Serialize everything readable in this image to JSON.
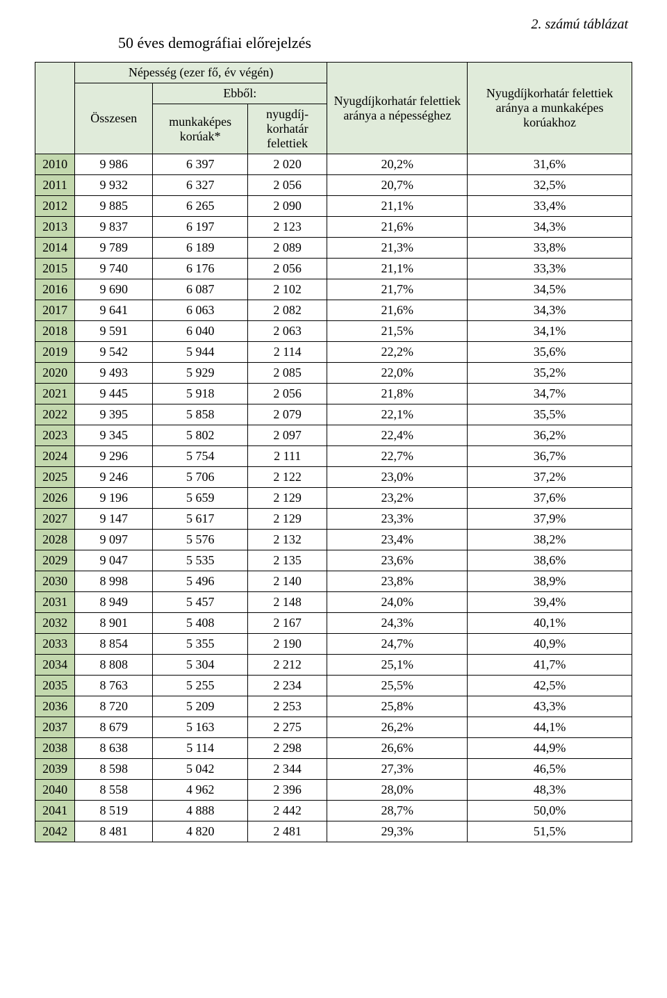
{
  "caption": "2. számú táblázat",
  "title": "50 éves demográfiai előrejelzés",
  "colors": {
    "header_bg": "#e0ebda",
    "year_col_bg": "#c3d8ae",
    "corner_bg": "#e0ebda",
    "border": "#000000",
    "page_bg": "#ffffff"
  },
  "typography": {
    "body_font": "Times New Roman",
    "caption_fontsize_pt": 15,
    "title_fontsize_pt": 16,
    "table_fontsize_pt": 13
  },
  "header": {
    "group_population": "Népesség (ezer fő, év végén)",
    "ebbol": "Ebből:",
    "osszesen": "Összesen",
    "workingage": "munkaképes korúak*",
    "retirees": "nyugdíj-korhatár felettiek",
    "share_pop": "Nyugdíjkorhatár felettiek aránya a népességhez",
    "share_work": "Nyugdíjkorhatár felettiek aránya a munkaképes korúakhoz"
  },
  "columns": [
    "year",
    "total",
    "working",
    "retired",
    "share_pop",
    "share_work"
  ],
  "rows": [
    [
      "2010",
      "9 986",
      "6 397",
      "2 020",
      "20,2%",
      "31,6%"
    ],
    [
      "2011",
      "9 932",
      "6 327",
      "2 056",
      "20,7%",
      "32,5%"
    ],
    [
      "2012",
      "9 885",
      "6 265",
      "2 090",
      "21,1%",
      "33,4%"
    ],
    [
      "2013",
      "9 837",
      "6 197",
      "2 123",
      "21,6%",
      "34,3%"
    ],
    [
      "2014",
      "9 789",
      "6 189",
      "2 089",
      "21,3%",
      "33,8%"
    ],
    [
      "2015",
      "9 740",
      "6 176",
      "2 056",
      "21,1%",
      "33,3%"
    ],
    [
      "2016",
      "9 690",
      "6 087",
      "2 102",
      "21,7%",
      "34,5%"
    ],
    [
      "2017",
      "9 641",
      "6 063",
      "2 082",
      "21,6%",
      "34,3%"
    ],
    [
      "2018",
      "9 591",
      "6 040",
      "2 063",
      "21,5%",
      "34,1%"
    ],
    [
      "2019",
      "9 542",
      "5 944",
      "2 114",
      "22,2%",
      "35,6%"
    ],
    [
      "2020",
      "9 493",
      "5 929",
      "2 085",
      "22,0%",
      "35,2%"
    ],
    [
      "2021",
      "9 445",
      "5 918",
      "2 056",
      "21,8%",
      "34,7%"
    ],
    [
      "2022",
      "9 395",
      "5 858",
      "2 079",
      "22,1%",
      "35,5%"
    ],
    [
      "2023",
      "9 345",
      "5 802",
      "2 097",
      "22,4%",
      "36,2%"
    ],
    [
      "2024",
      "9 296",
      "5 754",
      "2 111",
      "22,7%",
      "36,7%"
    ],
    [
      "2025",
      "9 246",
      "5 706",
      "2 122",
      "23,0%",
      "37,2%"
    ],
    [
      "2026",
      "9 196",
      "5 659",
      "2 129",
      "23,2%",
      "37,6%"
    ],
    [
      "2027",
      "9 147",
      "5 617",
      "2 129",
      "23,3%",
      "37,9%"
    ],
    [
      "2028",
      "9 097",
      "5 576",
      "2 132",
      "23,4%",
      "38,2%"
    ],
    [
      "2029",
      "9 047",
      "5 535",
      "2 135",
      "23,6%",
      "38,6%"
    ],
    [
      "2030",
      "8 998",
      "5 496",
      "2 140",
      "23,8%",
      "38,9%"
    ],
    [
      "2031",
      "8 949",
      "5 457",
      "2 148",
      "24,0%",
      "39,4%"
    ],
    [
      "2032",
      "8 901",
      "5 408",
      "2 167",
      "24,3%",
      "40,1%"
    ],
    [
      "2033",
      "8 854",
      "5 355",
      "2 190",
      "24,7%",
      "40,9%"
    ],
    [
      "2034",
      "8 808",
      "5 304",
      "2 212",
      "25,1%",
      "41,7%"
    ],
    [
      "2035",
      "8 763",
      "5 255",
      "2 234",
      "25,5%",
      "42,5%"
    ],
    [
      "2036",
      "8 720",
      "5 209",
      "2 253",
      "25,8%",
      "43,3%"
    ],
    [
      "2037",
      "8 679",
      "5 163",
      "2 275",
      "26,2%",
      "44,1%"
    ],
    [
      "2038",
      "8 638",
      "5 114",
      "2 298",
      "26,6%",
      "44,9%"
    ],
    [
      "2039",
      "8 598",
      "5 042",
      "2 344",
      "27,3%",
      "46,5%"
    ],
    [
      "2040",
      "8 558",
      "4 962",
      "2 396",
      "28,0%",
      "48,3%"
    ],
    [
      "2041",
      "8 519",
      "4 888",
      "2 442",
      "28,7%",
      "50,0%"
    ],
    [
      "2042",
      "8 481",
      "4 820",
      "2 481",
      "29,3%",
      "51,5%"
    ]
  ]
}
